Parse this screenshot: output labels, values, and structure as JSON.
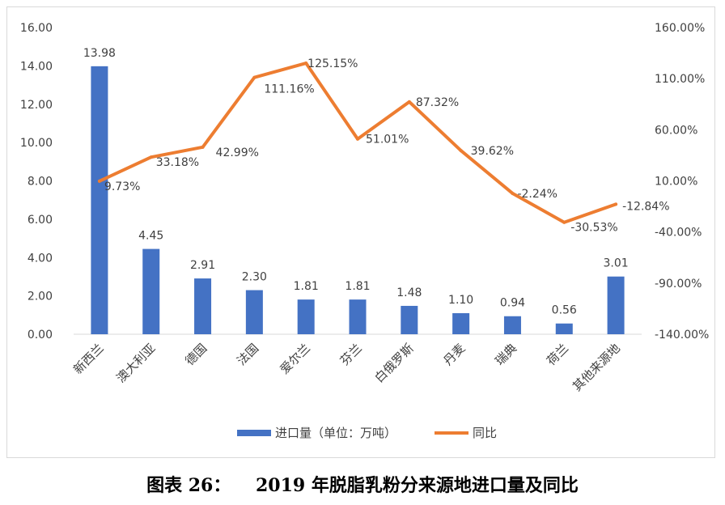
{
  "chart_data": {
    "type": "bar",
    "categories": [
      "新西兰",
      "澳大利亚",
      "德国",
      "法国",
      "爱尔兰",
      "芬兰",
      "白俄罗斯",
      "丹麦",
      "瑞典",
      "荷兰",
      "其他来源地"
    ],
    "series": [
      {
        "name": "进口量（单位：万吨）",
        "type": "bar",
        "axis": "left",
        "color": "#4472c4",
        "values": [
          13.98,
          4.45,
          2.91,
          2.3,
          1.81,
          1.81,
          1.48,
          1.1,
          0.94,
          0.56,
          3.01
        ],
        "labels": [
          "13.98",
          "4.45",
          "2.91",
          "2.30",
          "1.81",
          "1.81",
          "1.48",
          "1.10",
          "0.94",
          "0.56",
          "3.01"
        ]
      },
      {
        "name": "同比",
        "type": "line",
        "axis": "right",
        "color": "#ed7d31",
        "values": [
          9.73,
          33.18,
          42.99,
          111.16,
          125.15,
          51.01,
          87.32,
          39.62,
          -2.24,
          -30.53,
          -12.84
        ],
        "labels": [
          "9.73%",
          "33.18%",
          "42.99%",
          "111.16%",
          "125.15%",
          "51.01%",
          "87.32%",
          "39.62%",
          "-2.24%",
          "-30.53%",
          "-12.84%"
        ]
      }
    ],
    "y_left": {
      "ylim": [
        0,
        16
      ],
      "ticks": [
        "0.00",
        "2.00",
        "4.00",
        "6.00",
        "8.00",
        "10.00",
        "12.00",
        "14.00",
        "16.00"
      ]
    },
    "y_right": {
      "ylim": [
        -140,
        160
      ],
      "ticks": [
        "-140.00%",
        "-90.00%",
        "-40.00%",
        "10.00%",
        "60.00%",
        "110.00%",
        "160.00%"
      ]
    },
    "legend": {
      "position": "bottom",
      "bar_label": "进口量（单位：万吨）",
      "line_label": "同比"
    },
    "grid": false,
    "title": "",
    "xlabel": "",
    "ylabel": ""
  },
  "caption": {
    "prefix": "图表 26：",
    "text": "2019 年脱脂乳粉分来源地进口量及同比"
  }
}
